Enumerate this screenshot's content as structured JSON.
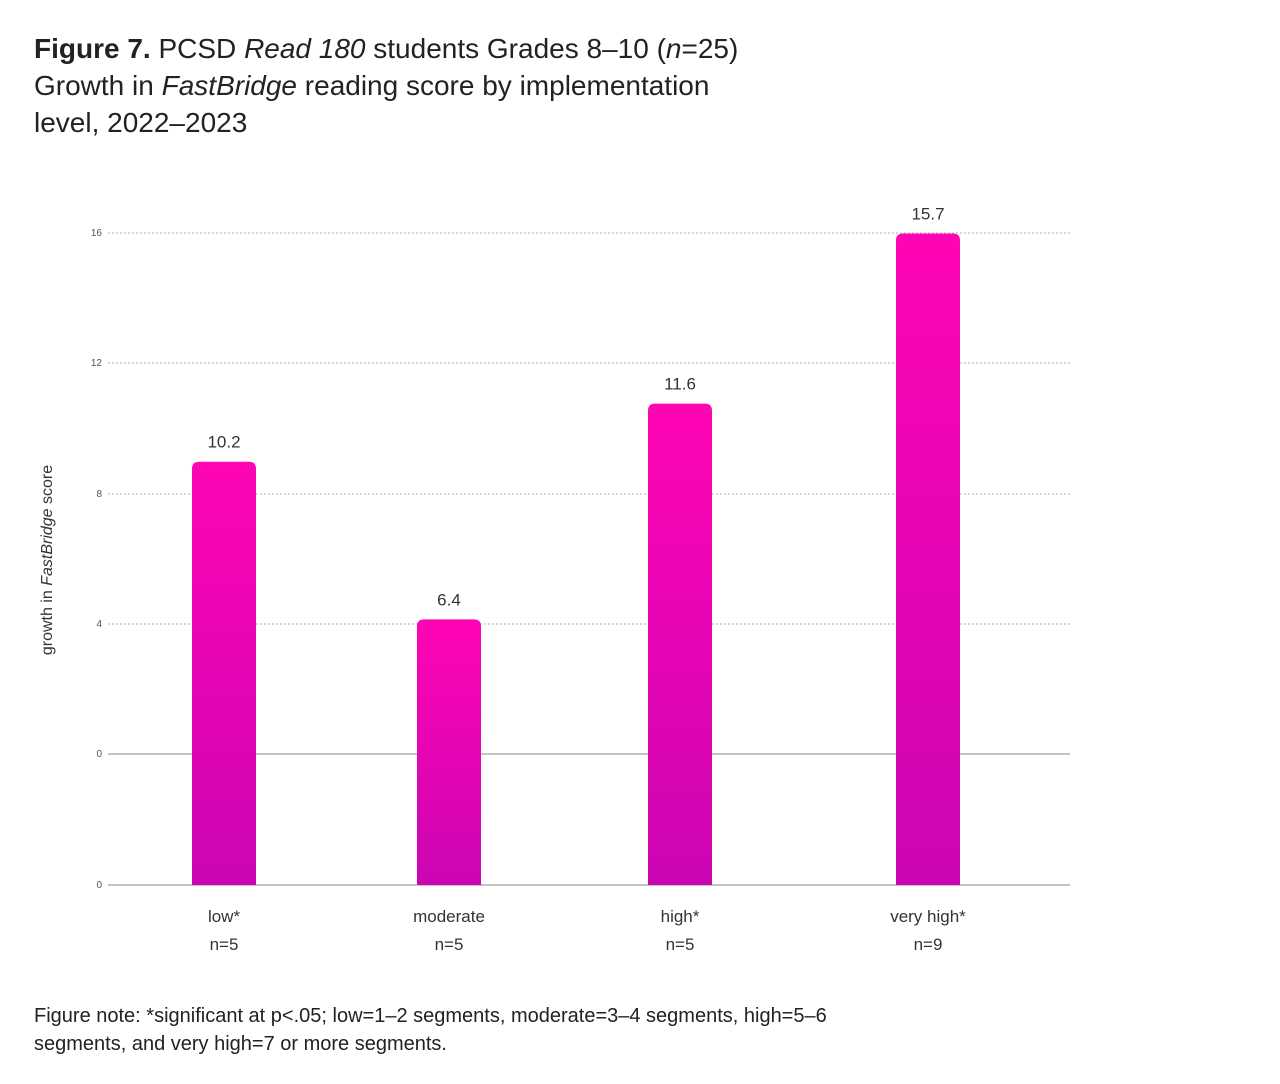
{
  "figure": {
    "label": "Figure 7.",
    "title_line1_a": "PCSD ",
    "title_line1_b": "Read 180",
    "title_line1_c": " students Grades 8–10 (",
    "title_line1_d": "n",
    "title_line1_e": "=25)",
    "title_line2_a": "Growth in ",
    "title_line2_b": "FastBridge",
    "title_line2_c": " reading score by implementation",
    "title_line3": "level, 2022–2023",
    "note_line1": "Figure note: *significant at p<.05; low=1–2 segments, moderate=3–4 segments, high=5–6",
    "note_line2": "segments, and very high=7 or more segments."
  },
  "chart_data": {
    "type": "bar",
    "categories": [
      "low*",
      "moderate",
      "high*",
      "very high*"
    ],
    "category_sublabels": [
      "n=5",
      "n=5",
      "n=5",
      "n=9"
    ],
    "values": [
      10.2,
      6.4,
      11.6,
      15.7
    ],
    "value_labels": [
      "10.2",
      "6.4",
      "11.6",
      "15.7"
    ],
    "ylabel_a": "growth in ",
    "ylabel_b": "FastBridge",
    "ylabel_c": " score",
    "y_ticks": [
      "16",
      "12",
      "8",
      "4",
      "0",
      "0"
    ],
    "grid": true,
    "colors": {
      "bar_top": "#ff05b4",
      "bar_bottom": "#cc05b4",
      "grid": "#999999",
      "axis": "#888888"
    }
  }
}
